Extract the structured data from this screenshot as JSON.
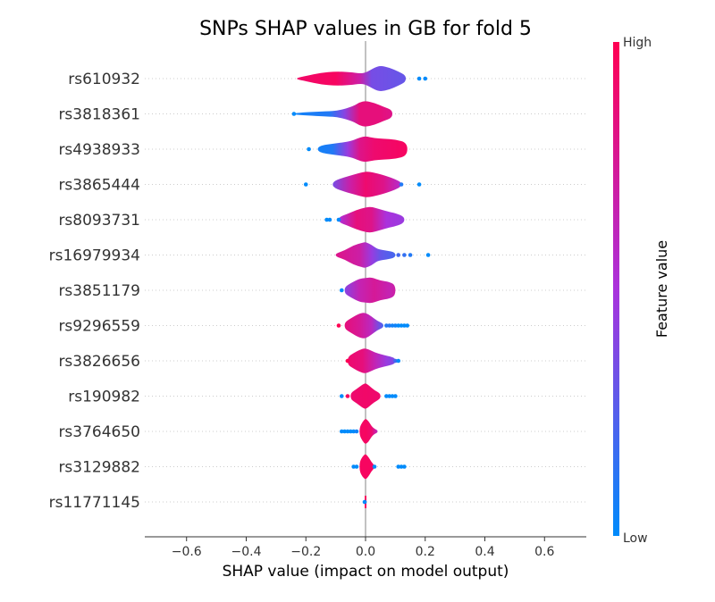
{
  "chart_data": {
    "type": "violin",
    "title": "SNPs SHAP values in GB for fold 5",
    "xlabel": "SHAP value (impact on model output)",
    "ylabel": "",
    "xlim": [
      -0.74,
      0.74
    ],
    "xticks": [
      -0.6,
      -0.4,
      -0.2,
      0.0,
      0.2,
      0.4,
      0.6
    ],
    "xtick_labels": [
      "−0.6",
      "−0.4",
      "−0.2",
      "0.0",
      "0.2",
      "0.4",
      "0.6"
    ],
    "grid": false,
    "colorbar": {
      "label": "Feature value",
      "high_label": "High",
      "low_label": "Low",
      "low_color": "#008bfb",
      "high_color": "#ff0052"
    },
    "features": [
      {
        "name": "rs610932",
        "profile": [
          [
            -0.23,
            0.06
          ],
          [
            -0.2,
            0.2
          ],
          [
            -0.15,
            0.45
          ],
          [
            -0.1,
            0.55
          ],
          [
            -0.05,
            0.5
          ],
          [
            -0.02,
            0.4
          ],
          [
            0.0,
            0.45
          ],
          [
            0.03,
            0.85
          ],
          [
            0.05,
            1.0
          ],
          [
            0.08,
            0.85
          ],
          [
            0.11,
            0.55
          ],
          [
            0.135,
            0.25
          ]
        ],
        "color_stops": [
          [
            -0.23,
            0.92
          ],
          [
            -0.1,
            0.95
          ],
          [
            -0.02,
            0.7
          ],
          [
            0.02,
            0.35
          ],
          [
            0.13,
            0.3
          ]
        ],
        "outliers": [
          [
            0.18,
            0.0
          ],
          [
            0.2,
            0.0
          ]
        ]
      },
      {
        "name": "rs3818361",
        "profile": [
          [
            -0.24,
            0.06
          ],
          [
            -0.2,
            0.12
          ],
          [
            -0.13,
            0.2
          ],
          [
            -0.09,
            0.25
          ],
          [
            -0.04,
            0.6
          ],
          [
            -0.02,
            0.9
          ],
          [
            0.0,
            1.0
          ],
          [
            0.03,
            0.85
          ],
          [
            0.06,
            0.55
          ],
          [
            0.09,
            0.3
          ]
        ],
        "color_stops": [
          [
            -0.24,
            0.05
          ],
          [
            -0.12,
            0.1
          ],
          [
            -0.07,
            0.4
          ],
          [
            -0.02,
            0.85
          ],
          [
            0.05,
            0.85
          ],
          [
            0.09,
            0.8
          ]
        ],
        "outliers": [
          [
            -0.24,
            0.0
          ]
        ]
      },
      {
        "name": "rs4938933",
        "profile": [
          [
            -0.16,
            0.25
          ],
          [
            -0.1,
            0.45
          ],
          [
            -0.05,
            0.6
          ],
          [
            -0.02,
            0.9
          ],
          [
            0.0,
            1.0
          ],
          [
            0.03,
            0.85
          ],
          [
            0.06,
            0.8
          ],
          [
            0.1,
            0.75
          ],
          [
            0.14,
            0.5
          ]
        ],
        "color_stops": [
          [
            -0.16,
            0.05
          ],
          [
            -0.11,
            0.1
          ],
          [
            -0.06,
            0.45
          ],
          [
            -0.02,
            0.8
          ],
          [
            0.03,
            0.9
          ],
          [
            0.14,
            0.95
          ]
        ],
        "outliers": [
          [
            -0.19,
            0.0
          ]
        ]
      },
      {
        "name": "rs3865444",
        "profile": [
          [
            -0.11,
            0.2
          ],
          [
            -0.08,
            0.5
          ],
          [
            -0.04,
            0.75
          ],
          [
            -0.01,
            0.95
          ],
          [
            0.01,
            1.0
          ],
          [
            0.04,
            0.85
          ],
          [
            0.07,
            0.65
          ],
          [
            0.1,
            0.4
          ],
          [
            0.12,
            0.15
          ]
        ],
        "color_stops": [
          [
            -0.11,
            0.35
          ],
          [
            -0.05,
            0.7
          ],
          [
            0.0,
            0.9
          ],
          [
            0.06,
            0.8
          ],
          [
            0.12,
            0.55
          ]
        ],
        "outliers": [
          [
            -0.2,
            0.0
          ],
          [
            0.12,
            0.1
          ],
          [
            0.18,
            0.0
          ]
        ]
      },
      {
        "name": "rs8093731",
        "profile": [
          [
            -0.09,
            0.2
          ],
          [
            -0.06,
            0.45
          ],
          [
            -0.03,
            0.75
          ],
          [
            0.0,
            0.95
          ],
          [
            0.02,
            1.0
          ],
          [
            0.05,
            0.8
          ],
          [
            0.08,
            0.6
          ],
          [
            0.1,
            0.5
          ],
          [
            0.13,
            0.25
          ]
        ],
        "color_stops": [
          [
            -0.09,
            0.5
          ],
          [
            -0.03,
            0.85
          ],
          [
            0.02,
            0.8
          ],
          [
            0.07,
            0.5
          ],
          [
            0.13,
            0.45
          ]
        ],
        "outliers": [
          [
            -0.13,
            0.0
          ],
          [
            -0.12,
            0.0
          ],
          [
            -0.09,
            0.0
          ]
        ]
      },
      {
        "name": "rs16979934",
        "profile": [
          [
            -0.1,
            0.12
          ],
          [
            -0.07,
            0.35
          ],
          [
            -0.04,
            0.75
          ],
          [
            -0.01,
            0.95
          ],
          [
            0.0,
            1.0
          ],
          [
            0.02,
            0.8
          ],
          [
            0.04,
            0.45
          ],
          [
            0.07,
            0.35
          ],
          [
            0.1,
            0.2
          ]
        ],
        "color_stops": [
          [
            -0.1,
            0.8
          ],
          [
            -0.02,
            0.7
          ],
          [
            0.02,
            0.45
          ],
          [
            0.05,
            0.3
          ],
          [
            0.1,
            0.2
          ]
        ],
        "outliers": [
          [
            0.11,
            0.2
          ],
          [
            0.13,
            0.15
          ],
          [
            0.15,
            0.1
          ],
          [
            0.21,
            0.0
          ]
        ]
      },
      {
        "name": "rs3851179",
        "profile": [
          [
            -0.07,
            0.25
          ],
          [
            -0.05,
            0.55
          ],
          [
            -0.02,
            0.9
          ],
          [
            0.0,
            0.95
          ],
          [
            0.02,
            1.0
          ],
          [
            0.05,
            0.75
          ],
          [
            0.08,
            0.65
          ],
          [
            0.1,
            0.4
          ]
        ],
        "color_stops": [
          [
            -0.07,
            0.4
          ],
          [
            -0.02,
            0.65
          ],
          [
            0.03,
            0.75
          ],
          [
            0.08,
            0.65
          ],
          [
            0.1,
            0.7
          ]
        ],
        "outliers": [
          [
            -0.08,
            0.0
          ]
        ]
      },
      {
        "name": "rs9296559",
        "profile": [
          [
            -0.07,
            0.25
          ],
          [
            -0.05,
            0.55
          ],
          [
            -0.02,
            0.95
          ],
          [
            0.0,
            1.0
          ],
          [
            0.02,
            0.7
          ],
          [
            0.04,
            0.35
          ],
          [
            0.06,
            0.15
          ]
        ],
        "color_stops": [
          [
            -0.07,
            0.85
          ],
          [
            -0.02,
            0.75
          ],
          [
            0.02,
            0.6
          ],
          [
            0.05,
            0.3
          ],
          [
            0.07,
            0.1
          ]
        ],
        "outliers": [
          [
            -0.09,
            1.0
          ],
          [
            0.07,
            0.1
          ],
          [
            0.08,
            0.1
          ],
          [
            0.09,
            0.05
          ],
          [
            0.1,
            0.05
          ],
          [
            0.11,
            0.0
          ],
          [
            0.12,
            0.0
          ],
          [
            0.13,
            0.0
          ],
          [
            0.14,
            0.0
          ]
        ]
      },
      {
        "name": "rs3826656",
        "profile": [
          [
            -0.06,
            0.3
          ],
          [
            -0.04,
            0.6
          ],
          [
            -0.02,
            0.85
          ],
          [
            0.0,
            1.0
          ],
          [
            0.03,
            0.65
          ],
          [
            0.06,
            0.45
          ],
          [
            0.09,
            0.3
          ],
          [
            0.1,
            0.15
          ]
        ],
        "color_stops": [
          [
            -0.06,
            0.9
          ],
          [
            -0.01,
            0.85
          ],
          [
            0.03,
            0.65
          ],
          [
            0.07,
            0.45
          ],
          [
            0.1,
            0.35
          ]
        ],
        "outliers": [
          [
            -0.06,
            1.0
          ],
          [
            0.1,
            0.2
          ],
          [
            0.11,
            0.0
          ]
        ]
      },
      {
        "name": "rs190982",
        "profile": [
          [
            -0.05,
            0.25
          ],
          [
            -0.03,
            0.55
          ],
          [
            -0.01,
            0.9
          ],
          [
            0.0,
            1.0
          ],
          [
            0.01,
            0.85
          ],
          [
            0.03,
            0.45
          ],
          [
            0.05,
            0.2
          ]
        ],
        "color_stops": [
          [
            -0.05,
            0.9
          ],
          [
            0.0,
            0.92
          ],
          [
            0.05,
            0.9
          ]
        ],
        "outliers": [
          [
            -0.08,
            0.0
          ],
          [
            -0.06,
            0.95
          ],
          [
            0.07,
            0.0
          ],
          [
            0.08,
            0.0
          ],
          [
            0.09,
            0.0
          ],
          [
            0.1,
            0.0
          ]
        ]
      },
      {
        "name": "rs3764650",
        "profile": [
          [
            -0.02,
            0.3
          ],
          [
            -0.01,
            0.75
          ],
          [
            0.0,
            1.0
          ],
          [
            0.01,
            0.8
          ],
          [
            0.02,
            0.4
          ],
          [
            0.03,
            0.2
          ],
          [
            0.04,
            0.1
          ]
        ],
        "color_stops": [
          [
            -0.03,
            0.92
          ],
          [
            0.0,
            0.95
          ],
          [
            0.02,
            0.9
          ],
          [
            0.04,
            0.6
          ]
        ],
        "outliers": [
          [
            -0.08,
            0.0
          ],
          [
            -0.07,
            0.0
          ],
          [
            -0.06,
            0.0
          ],
          [
            -0.05,
            0.0
          ],
          [
            -0.04,
            0.0
          ],
          [
            -0.03,
            0.05
          ]
        ]
      },
      {
        "name": "rs3129882",
        "profile": [
          [
            -0.02,
            0.35
          ],
          [
            -0.01,
            0.8
          ],
          [
            0.0,
            1.0
          ],
          [
            0.01,
            0.75
          ],
          [
            0.02,
            0.35
          ],
          [
            0.03,
            0.1
          ]
        ],
        "color_stops": [
          [
            -0.02,
            0.95
          ],
          [
            0.0,
            0.95
          ],
          [
            0.03,
            0.95
          ]
        ],
        "outliers": [
          [
            -0.04,
            0.0
          ],
          [
            -0.03,
            0.0
          ],
          [
            0.03,
            0.0
          ],
          [
            0.11,
            0.0
          ],
          [
            0.12,
            0.0
          ],
          [
            0.13,
            0.0
          ]
        ]
      },
      {
        "name": "rs11771145",
        "profile": [
          [
            -0.003,
            1.0
          ],
          [
            0.0,
            1.0
          ],
          [
            0.003,
            1.0
          ]
        ],
        "color_stops": [
          [
            -0.003,
            0.95
          ],
          [
            0.003,
            0.95
          ]
        ],
        "outliers": [
          [
            -0.003,
            0.0
          ]
        ]
      }
    ]
  }
}
